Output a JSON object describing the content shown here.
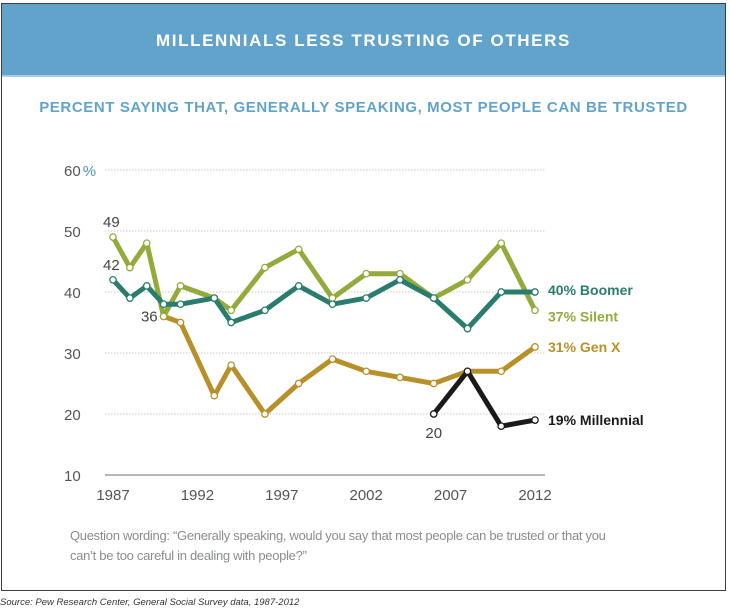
{
  "header": {
    "title": "MILLENNIALS LESS TRUSTING OF OTHERS",
    "subtitle": "PERCENT SAYING THAT, GENERALLY SPEAKING, MOST PEOPLE CAN BE TRUSTED"
  },
  "colors": {
    "header_bg": "#62a3cc",
    "subtitle": "#62a3cc",
    "boomer": "#2a7c6f",
    "silent": "#93ab3c",
    "genx": "#b8902a",
    "millennial": "#1a1a1a"
  },
  "chart_data": {
    "type": "line",
    "title": "MILLENNIALS LESS TRUSTING OF OTHERS",
    "subtitle": "PERCENT SAYING THAT, GENERALLY SPEAKING, MOST PEOPLE CAN BE TRUSTED",
    "xlabel": "",
    "ylabel": "",
    "xlim": [
      1987,
      2012
    ],
    "ylim": [
      10,
      60
    ],
    "x_ticks": [
      "1987",
      "1992",
      "1997",
      "2002",
      "2007",
      "2012"
    ],
    "y_ticks": [
      "10",
      "20",
      "30",
      "40",
      "50",
      "60%"
    ],
    "grid": true,
    "series": [
      {
        "name": "Silent",
        "end_label": "37% Silent",
        "x": [
          1987,
          1988,
          1989,
          1990,
          1991,
          1993,
          1994,
          1996,
          1998,
          2000,
          2002,
          2004,
          2006,
          2008,
          2010,
          2012
        ],
        "values": [
          49,
          44,
          48,
          36,
          41,
          39,
          37,
          44,
          47,
          39,
          43,
          43,
          39,
          42,
          48,
          37
        ],
        "point_labels": {
          "1987": "49"
        }
      },
      {
        "name": "Boomer",
        "end_label": "40% Boomer",
        "x": [
          1987,
          1988,
          1989,
          1990,
          1991,
          1993,
          1994,
          1996,
          1998,
          2000,
          2002,
          2004,
          2006,
          2008,
          2010,
          2012
        ],
        "values": [
          42,
          39,
          41,
          38,
          38,
          39,
          35,
          37,
          41,
          38,
          39,
          42,
          39,
          34,
          40,
          40
        ],
        "point_labels": {
          "1987": "42"
        }
      },
      {
        "name": "Gen X",
        "end_label": "31% Gen X",
        "x": [
          1990,
          1991,
          1993,
          1994,
          1996,
          1998,
          2000,
          2002,
          2004,
          2006,
          2008,
          2010,
          2012
        ],
        "values": [
          36,
          35,
          23,
          28,
          20,
          25,
          29,
          27,
          26,
          25,
          27,
          27,
          31
        ],
        "point_labels": {
          "1990": "36"
        }
      },
      {
        "name": "Millennial",
        "end_label": "19% Millennial",
        "x": [
          2006,
          2008,
          2010,
          2012
        ],
        "values": [
          20,
          27,
          18,
          19
        ],
        "point_labels": {
          "2006": "20"
        }
      }
    ]
  },
  "footer": {
    "question_wording": "Question wording: “Generally speaking, would you say that most people can be trusted or that you can’t be too careful in dealing with people?”",
    "source": "Source: Pew Research Center, General Social Survey data, 1987-2012"
  }
}
